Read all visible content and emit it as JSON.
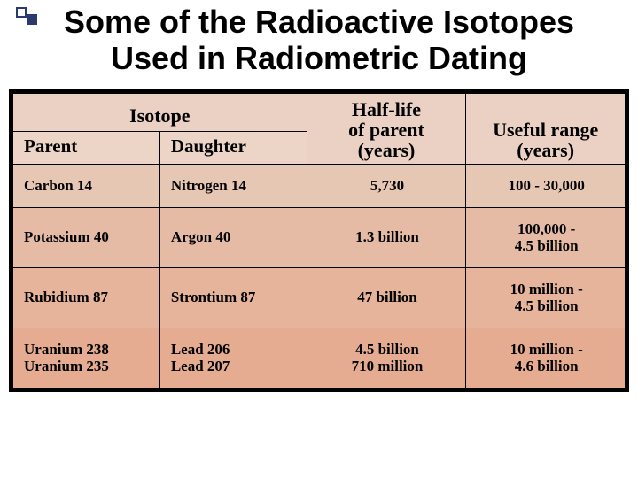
{
  "title": "Some of the Radioactive Isotopes Used in Radiometric Dating",
  "headers": {
    "isotope": "Isotope",
    "parent": "Parent",
    "daughter": "Daughter",
    "halflife": "Half-life\nof parent\n(years)",
    "range": "Useful range\n(years)"
  },
  "table": {
    "type": "table",
    "columns": [
      "Parent",
      "Daughter",
      "Half-life of parent (years)",
      "Useful range (years)"
    ],
    "rows": [
      {
        "parent": "Carbon 14",
        "daughter": "Nitrogen 14",
        "halflife": "5,730",
        "range": "100 - 30,000",
        "bg": "#e6c7b4"
      },
      {
        "parent": "Potassium 40",
        "daughter": "Argon 40",
        "halflife": "1.3 billion",
        "range": "100,000 -\n4.5 billion",
        "bg": "#e5bba6"
      },
      {
        "parent": "Rubidium 87",
        "daughter": "Strontium 87",
        "halflife": "47 billion",
        "range": "10 million -\n4.5 billion",
        "bg": "#e6b39b"
      },
      {
        "parent": "Uranium 238\nUranium 235",
        "daughter": "Lead 206\nLead 207",
        "halflife": "4.5 billion\n710 million",
        "range": "10 million -\n4.6 billion",
        "bg": "#e5ac92"
      }
    ],
    "header_bg": "#ead1c3",
    "border_color": "#000000",
    "font_family": "Times New Roman",
    "header_fontsize": 22,
    "cell_fontsize": 17
  },
  "colors": {
    "title_color": "#000000",
    "bullet_color": "#2a3a6e",
    "background": "#ffffff"
  }
}
